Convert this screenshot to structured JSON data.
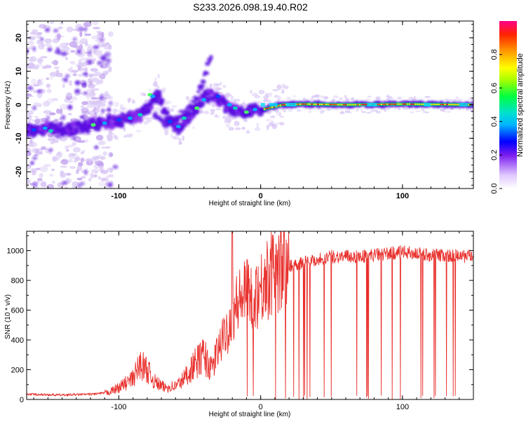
{
  "title": "S233.2026.098.19.40.R02",
  "colors": {
    "snr_line": "#e8302c",
    "spec_main": "#5a0de0",
    "spec_faint": "#cdb6f2",
    "frame": "#000000"
  },
  "chart_data": [
    {
      "type": "heatmap",
      "name": "spectrogram",
      "xlabel": "Height of straight line (km)",
      "ylabel": "Frequency (Hz)",
      "xlim": [
        -165,
        150
      ],
      "ylim": [
        -25,
        25
      ],
      "xticks": [
        -100,
        0,
        100
      ],
      "yticks": [
        20,
        10,
        0,
        -10,
        -20
      ],
      "ridge": {
        "x": [
          -165,
          -150,
          -135,
          -120,
          -105,
          -95,
          -85,
          -78,
          -72,
          -65,
          -58,
          -52,
          -45,
          -40,
          -36,
          -33,
          -28,
          -22,
          -16,
          -10,
          -5,
          0,
          5,
          15,
          30,
          60,
          100,
          150
        ],
        "y": [
          -7.5,
          -7,
          -7.5,
          -6,
          -5,
          -4.5,
          -3,
          -0.5,
          3,
          -5,
          -7,
          -4,
          -1,
          2,
          3,
          2,
          1,
          -1,
          -2,
          -2.5,
          -1.5,
          -1.5,
          -1,
          0,
          0.2,
          0,
          0.2,
          0
        ]
      },
      "branch": {
        "x": [
          -75,
          -68,
          -60,
          -52,
          -45,
          -40,
          -37,
          -35
        ],
        "y": [
          -3,
          -6,
          -4,
          -2,
          2,
          8,
          12,
          15
        ]
      },
      "colorbar": {
        "label": "Normalized spectral amplitude",
        "ticks": [
          "0.0",
          "0.2",
          "0.4",
          "0.6",
          "0.8"
        ],
        "range": [
          0,
          1
        ]
      }
    },
    {
      "type": "line",
      "name": "snr",
      "xlabel": "Height of straight line (km)",
      "ylabel": "SNR (10 * v/v)",
      "xlim": [
        -165,
        150
      ],
      "ylim": [
        0,
        1130
      ],
      "xticks": [
        -100,
        0,
        100
      ],
      "yticks": [
        0,
        200,
        400,
        600,
        800,
        1000
      ],
      "envelope": {
        "x": [
          -165,
          -140,
          -120,
          -108,
          -100,
          -90,
          -85,
          -80,
          -75,
          -68,
          -60,
          -55,
          -48,
          -40,
          -35,
          -28,
          -22,
          -18,
          -12,
          -5,
          0,
          5,
          12,
          20,
          30,
          40,
          50,
          70,
          100,
          120,
          150
        ],
        "y": [
          35,
          30,
          35,
          45,
          80,
          140,
          240,
          200,
          120,
          80,
          90,
          130,
          220,
          300,
          200,
          380,
          500,
          620,
          700,
          700,
          750,
          820,
          880,
          900,
          920,
          940,
          960,
          960,
          990,
          970,
          960
        ]
      },
      "spike": {
        "x": -20,
        "y": 1130
      },
      "dropout_start": -10
    }
  ]
}
